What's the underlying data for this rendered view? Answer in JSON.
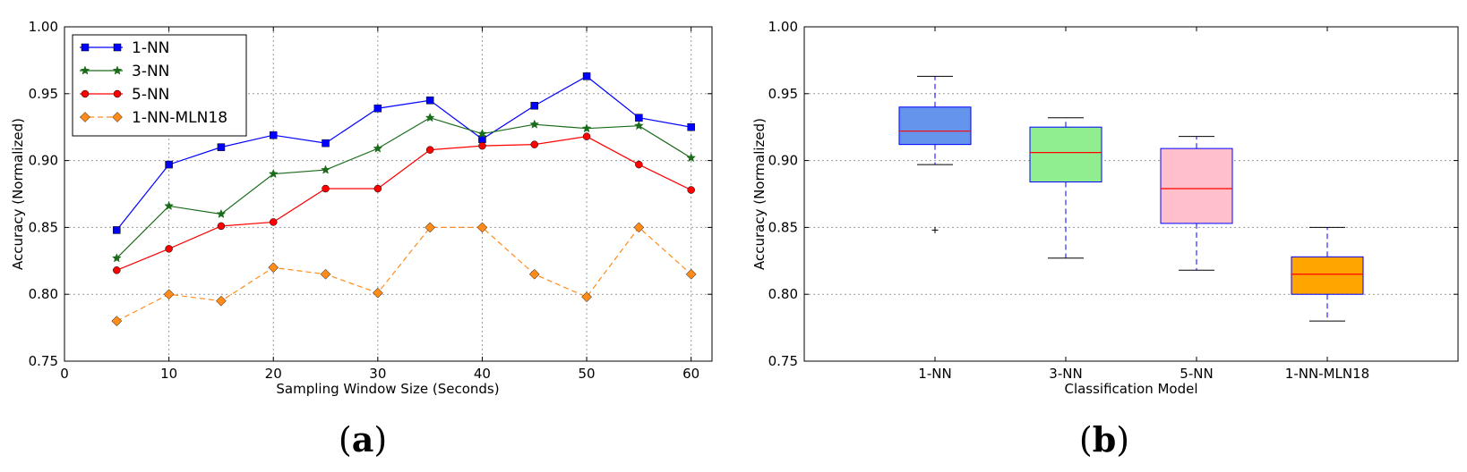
{
  "chart_data": [
    {
      "type": "line",
      "caption_open": "(",
      "caption_letter": "a",
      "caption_close": ")",
      "xlabel": "Sampling Window Size (Seconds)",
      "ylabel": "Accuracy (Normalized)",
      "xlim": [
        0,
        62
      ],
      "ylim": [
        0.75,
        1.0
      ],
      "xticks": [
        0,
        10,
        20,
        30,
        40,
        50,
        60
      ],
      "yticks": [
        0.75,
        0.8,
        0.85,
        0.9,
        0.95,
        1.0
      ],
      "xtick_labels": [
        "0",
        "10",
        "20",
        "30",
        "40",
        "50",
        "60"
      ],
      "ytick_labels": [
        "0.75",
        "0.80",
        "0.85",
        "0.90",
        "0.95",
        "1.00"
      ],
      "grid": true,
      "legend_position": "top-left",
      "x": [
        5,
        10,
        15,
        20,
        25,
        30,
        35,
        40,
        45,
        50,
        55,
        60
      ],
      "series": [
        {
          "name": "1-NN",
          "color": "#0000ff",
          "marker": "square",
          "dash": "solid",
          "values": [
            0.848,
            0.897,
            0.91,
            0.919,
            0.913,
            0.939,
            0.945,
            0.916,
            0.941,
            0.963,
            0.932,
            0.925
          ]
        },
        {
          "name": "3-NN",
          "color": "#1a6b1a",
          "marker": "star",
          "dash": "solid",
          "values": [
            0.827,
            0.866,
            0.86,
            0.89,
            0.893,
            0.909,
            0.932,
            0.92,
            0.927,
            0.924,
            0.926,
            0.902
          ]
        },
        {
          "name": "5-NN",
          "color": "#ff0000",
          "marker": "circle",
          "dash": "solid",
          "values": [
            0.818,
            0.834,
            0.851,
            0.854,
            0.879,
            0.879,
            0.908,
            0.911,
            0.912,
            0.918,
            0.897,
            0.878
          ]
        },
        {
          "name": "1-NN-MLN18",
          "color": "#ff8c1a",
          "marker": "diamond",
          "dash": "dashed",
          "values": [
            0.78,
            0.8,
            0.795,
            0.82,
            0.815,
            0.801,
            0.85,
            0.85,
            0.815,
            0.798,
            0.85,
            0.815
          ]
        }
      ]
    },
    {
      "type": "box",
      "caption_open": "(",
      "caption_letter": "b",
      "caption_close": ")",
      "xlabel": "Classification Model",
      "ylabel": "Accuracy (Normalized)",
      "ylim": [
        0.75,
        1.0
      ],
      "yticks": [
        0.75,
        0.8,
        0.85,
        0.9,
        0.95,
        1.0
      ],
      "ytick_labels": [
        "0.75",
        "0.80",
        "0.85",
        "0.90",
        "0.95",
        "1.00"
      ],
      "grid": true,
      "categories": [
        "1-NN",
        "3-NN",
        "5-NN",
        "1-NN-MLN18"
      ],
      "boxes": [
        {
          "name": "1-NN",
          "color": "#6495ed",
          "whisker_low": 0.897,
          "q1": 0.912,
          "median": 0.922,
          "q3": 0.94,
          "whisker_high": 0.963,
          "outliers": [
            0.848
          ]
        },
        {
          "name": "3-NN",
          "color": "#90ee90",
          "whisker_low": 0.827,
          "q1": 0.884,
          "median": 0.906,
          "q3": 0.925,
          "whisker_high": 0.932,
          "outliers": []
        },
        {
          "name": "5-NN",
          "color": "#ffc0cb",
          "whisker_low": 0.818,
          "q1": 0.853,
          "median": 0.879,
          "q3": 0.909,
          "whisker_high": 0.918,
          "outliers": []
        },
        {
          "name": "1-NN-MLN18",
          "color": "#ffa500",
          "whisker_low": 0.78,
          "q1": 0.8,
          "median": 0.815,
          "q3": 0.828,
          "whisker_high": 0.85,
          "outliers": []
        }
      ]
    }
  ]
}
